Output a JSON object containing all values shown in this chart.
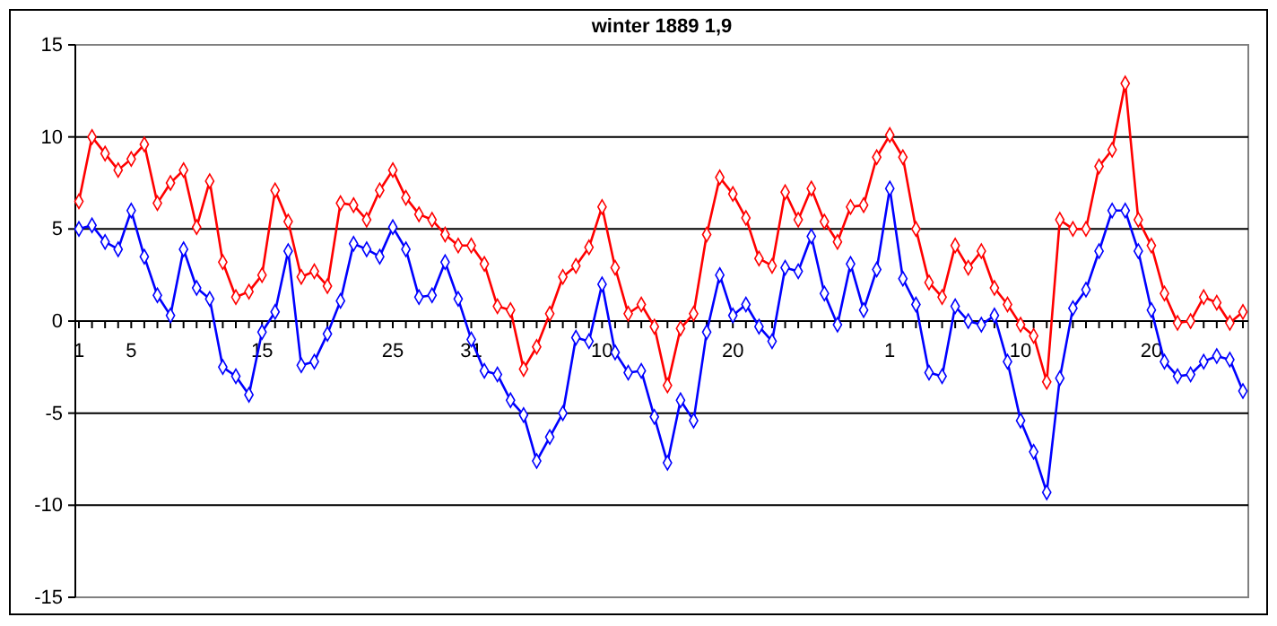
{
  "chart_data": {
    "type": "line",
    "title": "winter 1889 1,9",
    "categories": [
      "1",
      null,
      null,
      null,
      "5",
      null,
      null,
      null,
      null,
      null,
      null,
      null,
      null,
      null,
      "15",
      null,
      null,
      null,
      null,
      null,
      null,
      null,
      null,
      null,
      "25",
      null,
      null,
      null,
      null,
      null,
      "31",
      null,
      null,
      null,
      null,
      null,
      null,
      null,
      null,
      null,
      "10",
      null,
      null,
      null,
      null,
      null,
      null,
      null,
      null,
      null,
      "20",
      null,
      null,
      null,
      null,
      null,
      null,
      null,
      null,
      null,
      null,
      null,
      "1",
      null,
      null,
      null,
      null,
      null,
      null,
      null,
      null,
      null,
      "10",
      null,
      null,
      null,
      null,
      null,
      null,
      null,
      null,
      null,
      "20",
      null,
      null,
      null,
      null,
      null,
      null,
      null
    ],
    "series": [
      {
        "color": "#ff0000",
        "values": [
          6.5,
          10.0,
          9.1,
          8.2,
          8.8,
          9.6,
          6.4,
          7.5,
          8.2,
          5.1,
          7.6,
          3.2,
          1.3,
          1.6,
          2.5,
          7.1,
          5.4,
          2.4,
          2.7,
          1.9,
          6.4,
          6.3,
          5.5,
          7.1,
          8.2,
          6.7,
          5.8,
          5.5,
          4.7,
          4.1,
          4.1,
          3.1,
          0.8,
          0.6,
          -2.6,
          -1.4,
          0.4,
          2.4,
          3.0,
          4.0,
          6.2,
          2.9,
          0.4,
          0.9,
          -0.3,
          -3.5,
          -0.4,
          0.4,
          4.7,
          7.8,
          6.9,
          5.6,
          3.4,
          3.0,
          7.0,
          5.5,
          7.2,
          5.4,
          4.3,
          6.2,
          6.3,
          8.9,
          10.1,
          8.9,
          5.0,
          2.1,
          1.3,
          4.1,
          2.9,
          3.8,
          1.8,
          0.9,
          -0.2,
          -0.8,
          -3.3,
          5.5,
          5.0,
          5.0,
          8.4,
          9.3,
          12.9,
          5.5,
          4.1,
          1.5,
          -0.1,
          0.0,
          1.3,
          1.0,
          -0.1,
          0.5
        ]
      },
      {
        "color": "#0000ff",
        "values": [
          5.0,
          5.2,
          4.3,
          3.9,
          6.0,
          3.5,
          1.4,
          0.3,
          3.9,
          1.8,
          1.2,
          -2.5,
          -3.0,
          -4.0,
          -0.6,
          0.5,
          3.8,
          -2.4,
          -2.2,
          -0.7,
          1.1,
          4.2,
          3.9,
          3.5,
          5.1,
          3.9,
          1.3,
          1.4,
          3.2,
          1.2,
          -1.0,
          -2.7,
          -2.9,
          -4.3,
          -5.1,
          -7.6,
          -6.3,
          -5.0,
          -0.9,
          -1.1,
          2.0,
          -1.7,
          -2.8,
          -2.7,
          -5.2,
          -7.7,
          -4.3,
          -5.4,
          -0.6,
          2.5,
          0.3,
          0.9,
          -0.3,
          -1.1,
          2.9,
          2.7,
          4.6,
          1.5,
          -0.2,
          3.1,
          0.6,
          2.8,
          7.2,
          2.3,
          0.9,
          -2.8,
          -3.0,
          0.8,
          0.0,
          -0.2,
          0.3,
          -2.2,
          -5.4,
          -7.1,
          -9.3,
          -3.1,
          0.7,
          1.7,
          3.8,
          6.0,
          6.0,
          3.8,
          0.6,
          -2.2,
          -3.0,
          -2.9,
          -2.2,
          -1.9,
          -2.1,
          -3.8
        ]
      }
    ],
    "ylim": [
      -15,
      15
    ],
    "yticks": [
      -15,
      -10,
      -5,
      0,
      5,
      10,
      15
    ],
    "grid": "y",
    "marker": "diamond",
    "line_style": "solid"
  }
}
